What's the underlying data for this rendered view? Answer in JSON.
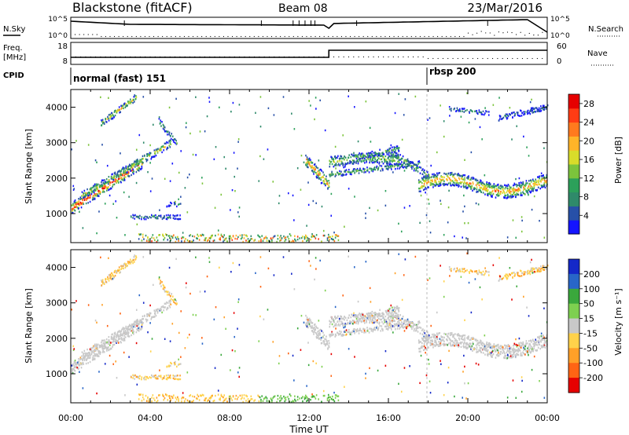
{
  "header": {
    "station": "Blackstone (fitACF)",
    "beam": "Beam 08",
    "date": "23/Mar/2016"
  },
  "status_panel": {
    "left_label_top": "N.Sky",
    "left_ticks": [
      "10^5",
      "10^0"
    ],
    "right_ticks": [
      "10^5",
      "10^0"
    ],
    "right_label": "N.Search"
  },
  "freq_panel": {
    "label": "Freq.",
    "unit": "[MHz]",
    "left_ticks": [
      "18",
      "8"
    ],
    "right_ticks": [
      "60",
      "0"
    ],
    "right_label": "Nave",
    "cpid_label": "CPID"
  },
  "cpid": [
    {
      "name": "normal (fast) 151",
      "start": "00:00"
    },
    {
      "name": "rbsp 200",
      "start": "18:00"
    }
  ],
  "chart_data": [
    {
      "type": "heatmap",
      "name": "power",
      "ylabel": "Slant Range [km]",
      "xlabel": "Time UT",
      "x_ticks": [
        "00:00",
        "04:00",
        "08:00",
        "12:00",
        "16:00",
        "20:00",
        "00:00"
      ],
      "y_ticks": [
        1000,
        2000,
        3000,
        4000
      ],
      "ylim": [
        180,
        4500
      ],
      "xlim": [
        0,
        24
      ],
      "colorbar": {
        "label": "Power [dB]",
        "ticks": [
          4,
          8,
          12,
          16,
          20,
          24,
          28
        ],
        "colors": [
          "#1414ff",
          "#2750a8",
          "#2f8a6a",
          "#2ca05a",
          "#7cc43c",
          "#d8dc2a",
          "#ffb428",
          "#ff7a1e",
          "#ff3c14",
          "#e60000"
        ]
      }
    },
    {
      "type": "heatmap",
      "name": "velocity",
      "ylabel": "Slant Range [km]",
      "xlabel": "Time UT",
      "x_ticks": [
        "00:00",
        "04:00",
        "08:00",
        "12:00",
        "16:00",
        "20:00",
        "00:00"
      ],
      "y_ticks": [
        1000,
        2000,
        3000,
        4000
      ],
      "ylim": [
        180,
        4500
      ],
      "xlim": [
        0,
        24
      ],
      "colorbar": {
        "label": "Velocity [m s⁻¹]",
        "ticks": [
          200,
          100,
          50,
          15,
          -15,
          -50,
          -100,
          -200
        ],
        "colors": [
          "#1428c8",
          "#2866c8",
          "#3aa83c",
          "#7ed050",
          "#c8c8c8",
          "#ffd24a",
          "#ffa028",
          "#ff6414",
          "#e60000"
        ]
      }
    }
  ]
}
